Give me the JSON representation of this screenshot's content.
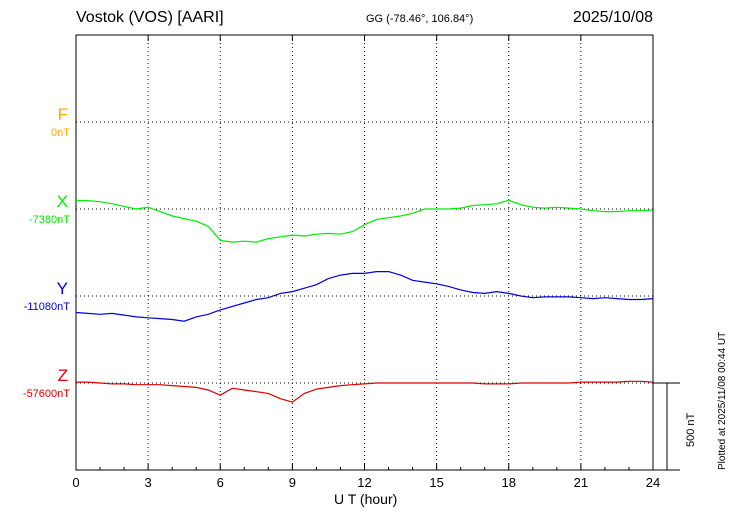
{
  "header": {
    "station": "Vostok (VOS)  [AARI]",
    "coords": "GG (-78.46°, 106.84°)",
    "date": "2025/10/08"
  },
  "footer": {
    "plotted_note": "Plotted at 2025/11/08 00:44 UT",
    "scale_bar_label": "500 nT"
  },
  "chart_data": {
    "type": "line",
    "xlabel": "U T (hour)",
    "xlim": [
      0,
      24
    ],
    "xticks": [
      0,
      3,
      6,
      9,
      12,
      15,
      18,
      21,
      24
    ],
    "scale_bar_nT": 500,
    "series": [
      {
        "name": "F",
        "baseline_label": "0nT",
        "color": "#ffaa00",
        "x": [],
        "values": []
      },
      {
        "name": "X",
        "baseline_label": "-7380nT",
        "color": "#00ee00",
        "x": [
          0,
          0.5,
          1,
          1.5,
          2,
          2.5,
          3,
          3.5,
          4,
          4.5,
          5,
          5.5,
          6,
          6.5,
          7,
          7.5,
          8,
          8.5,
          9,
          9.5,
          10,
          10.5,
          11,
          11.5,
          12,
          12.5,
          13,
          13.5,
          14,
          14.5,
          15,
          15.5,
          16,
          16.5,
          17,
          17.5,
          18,
          18.5,
          19,
          19.5,
          20,
          20.5,
          21,
          21.5,
          22,
          22.5,
          23,
          23.5,
          24
        ],
        "values": [
          50,
          48,
          42,
          30,
          15,
          0,
          10,
          -15,
          -40,
          -55,
          -70,
          -100,
          -180,
          -190,
          -185,
          -190,
          -170,
          -160,
          -150,
          -155,
          -145,
          -140,
          -145,
          -130,
          -90,
          -60,
          -50,
          -40,
          -25,
          0,
          0,
          0,
          5,
          20,
          25,
          30,
          50,
          25,
          10,
          5,
          10,
          5,
          0,
          -10,
          -15,
          -15,
          -10,
          -10,
          -5
        ]
      },
      {
        "name": "Y",
        "baseline_label": "-11080nT",
        "color": "#0000dd",
        "x": [
          0,
          0.5,
          1,
          1.5,
          2,
          2.5,
          3,
          3.5,
          4,
          4.5,
          5,
          5.5,
          6,
          6.5,
          7,
          7.5,
          8,
          8.5,
          9,
          9.5,
          10,
          10.5,
          11,
          11.5,
          12,
          12.5,
          13,
          13.5,
          14,
          14.5,
          15,
          15.5,
          16,
          16.5,
          17,
          17.5,
          18,
          18.5,
          19,
          19.5,
          20,
          20.5,
          21,
          21.5,
          22,
          22.5,
          23,
          23.5,
          24
        ],
        "values": [
          -95,
          -100,
          -105,
          -100,
          -110,
          -120,
          -125,
          -130,
          -135,
          -145,
          -120,
          -105,
          -80,
          -60,
          -40,
          -20,
          -10,
          15,
          25,
          45,
          65,
          100,
          120,
          130,
          130,
          140,
          140,
          120,
          90,
          80,
          70,
          55,
          35,
          20,
          15,
          25,
          15,
          0,
          -10,
          -5,
          -5,
          -5,
          -10,
          -15,
          -10,
          -15,
          -20,
          -20,
          -15
        ]
      },
      {
        "name": "Z",
        "baseline_label": "-57600nT",
        "color": "#dd0000",
        "x": [
          0,
          0.5,
          1,
          1.5,
          2,
          2.5,
          3,
          3.5,
          4,
          4.5,
          5,
          5.5,
          6,
          6.5,
          7,
          7.5,
          8,
          8.5,
          9,
          9.5,
          10,
          10.5,
          11,
          11.5,
          12,
          12.5,
          13,
          13.5,
          14,
          14.5,
          15,
          15.5,
          16,
          16.5,
          17,
          17.5,
          18,
          18.5,
          19,
          19.5,
          20,
          20.5,
          21,
          21.5,
          22,
          22.5,
          23,
          23.5,
          24
        ],
        "values": [
          5,
          5,
          0,
          -5,
          -5,
          -10,
          -10,
          -10,
          -15,
          -20,
          -25,
          -40,
          -70,
          -30,
          -40,
          -50,
          -60,
          -90,
          -110,
          -60,
          -35,
          -25,
          -15,
          -10,
          -5,
          0,
          0,
          0,
          0,
          0,
          0,
          0,
          0,
          0,
          -5,
          -5,
          -5,
          0,
          0,
          0,
          0,
          0,
          5,
          5,
          5,
          5,
          10,
          10,
          5
        ]
      }
    ]
  }
}
